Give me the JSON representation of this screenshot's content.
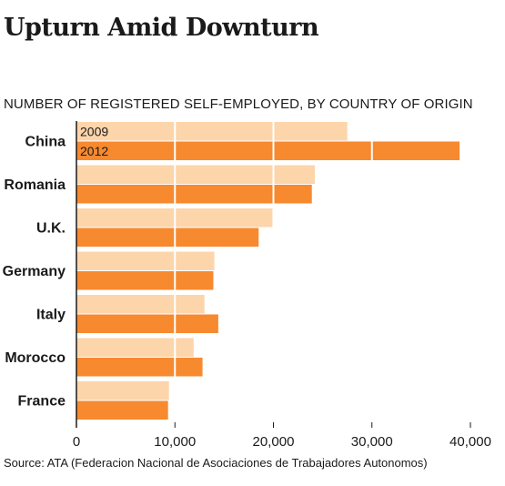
{
  "title": "Upturn Amid Downturn",
  "subtitle": "NUMBER OF REGISTERED SELF-EMPLOYED, BY COUNTRY OF ORIGIN",
  "source": "Source: ATA (Federacion Nacional de Asociaciones de Trabajadores Autonomos)",
  "colors": {
    "series_2009": "#fdd5ab",
    "series_2012": "#f7892f"
  },
  "chart_data": {
    "type": "bar",
    "orientation": "horizontal",
    "categories": [
      "China",
      "Romania",
      "U.K.",
      "Germany",
      "Italy",
      "Morocco",
      "France"
    ],
    "series": [
      {
        "name": "2009",
        "values": [
          27500,
          24200,
          19900,
          14000,
          13000,
          11900,
          9400
        ]
      },
      {
        "name": "2012",
        "values": [
          38900,
          23900,
          18500,
          13900,
          14400,
          12800,
          9300
        ]
      }
    ],
    "xlim": [
      0,
      40000
    ],
    "xticks": [
      0,
      10000,
      20000,
      30000,
      40000
    ],
    "xtick_labels": [
      "0",
      "10,000",
      "20,000",
      "30,000",
      "40,000"
    ],
    "legend": "inside first bars",
    "grid": "vertical white lines over bars"
  }
}
